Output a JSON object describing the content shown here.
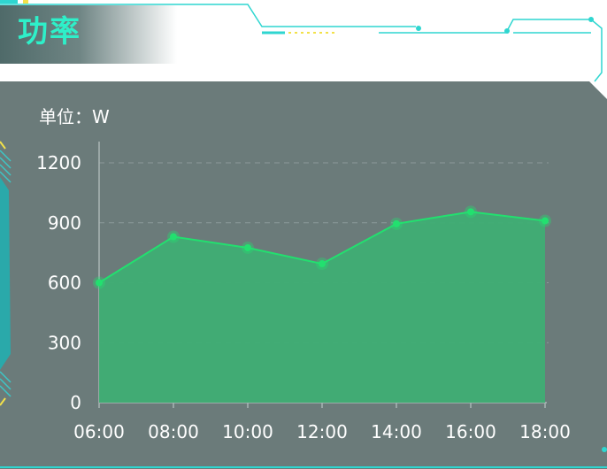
{
  "header": {
    "title": "功率"
  },
  "colors": {
    "panel": "#6b7b7a",
    "accent": "#2ef0c9",
    "area": "#3fae74",
    "line": "#22e06f",
    "grid": "#8c9a99"
  },
  "chart_data": {
    "type": "area",
    "unit_label": "单位：W",
    "x": [
      "06:00",
      "08:00",
      "10:00",
      "12:00",
      "14:00",
      "16:00",
      "18:00"
    ],
    "series": [
      {
        "values": [
          600,
          830,
          775,
          695,
          895,
          955,
          910
        ]
      }
    ],
    "y_ticks": [
      "0",
      "300",
      "600",
      "900",
      "1200"
    ],
    "ylim": [
      0,
      1200
    ],
    "grid": true
  }
}
